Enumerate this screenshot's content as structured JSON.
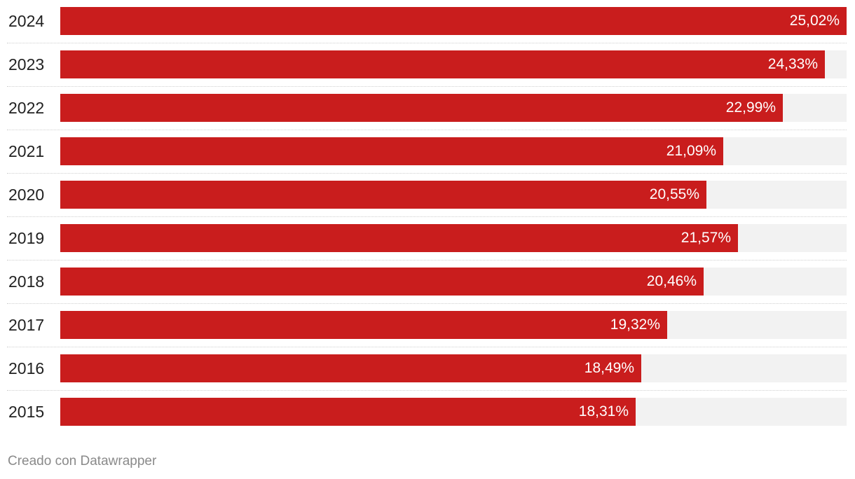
{
  "chart_data": {
    "type": "bar",
    "orientation": "horizontal",
    "categories": [
      "2024",
      "2023",
      "2022",
      "2021",
      "2020",
      "2019",
      "2018",
      "2017",
      "2016",
      "2015"
    ],
    "values": [
      25.02,
      24.33,
      22.99,
      21.09,
      20.55,
      21.57,
      20.46,
      19.32,
      18.49,
      18.31
    ],
    "value_labels": [
      "25,02%",
      "24,33%",
      "22,99%",
      "21,09%",
      "20,55%",
      "21,57%",
      "20,46%",
      "19,32%",
      "18,49%",
      "18,31%"
    ],
    "xlim": [
      0,
      25.02
    ],
    "bar_color": "#c91d1d",
    "track_color": "#f2f2f2",
    "title": "",
    "xlabel": "",
    "ylabel": "",
    "grid": false
  },
  "footer": {
    "credit": "Creado con Datawrapper"
  }
}
